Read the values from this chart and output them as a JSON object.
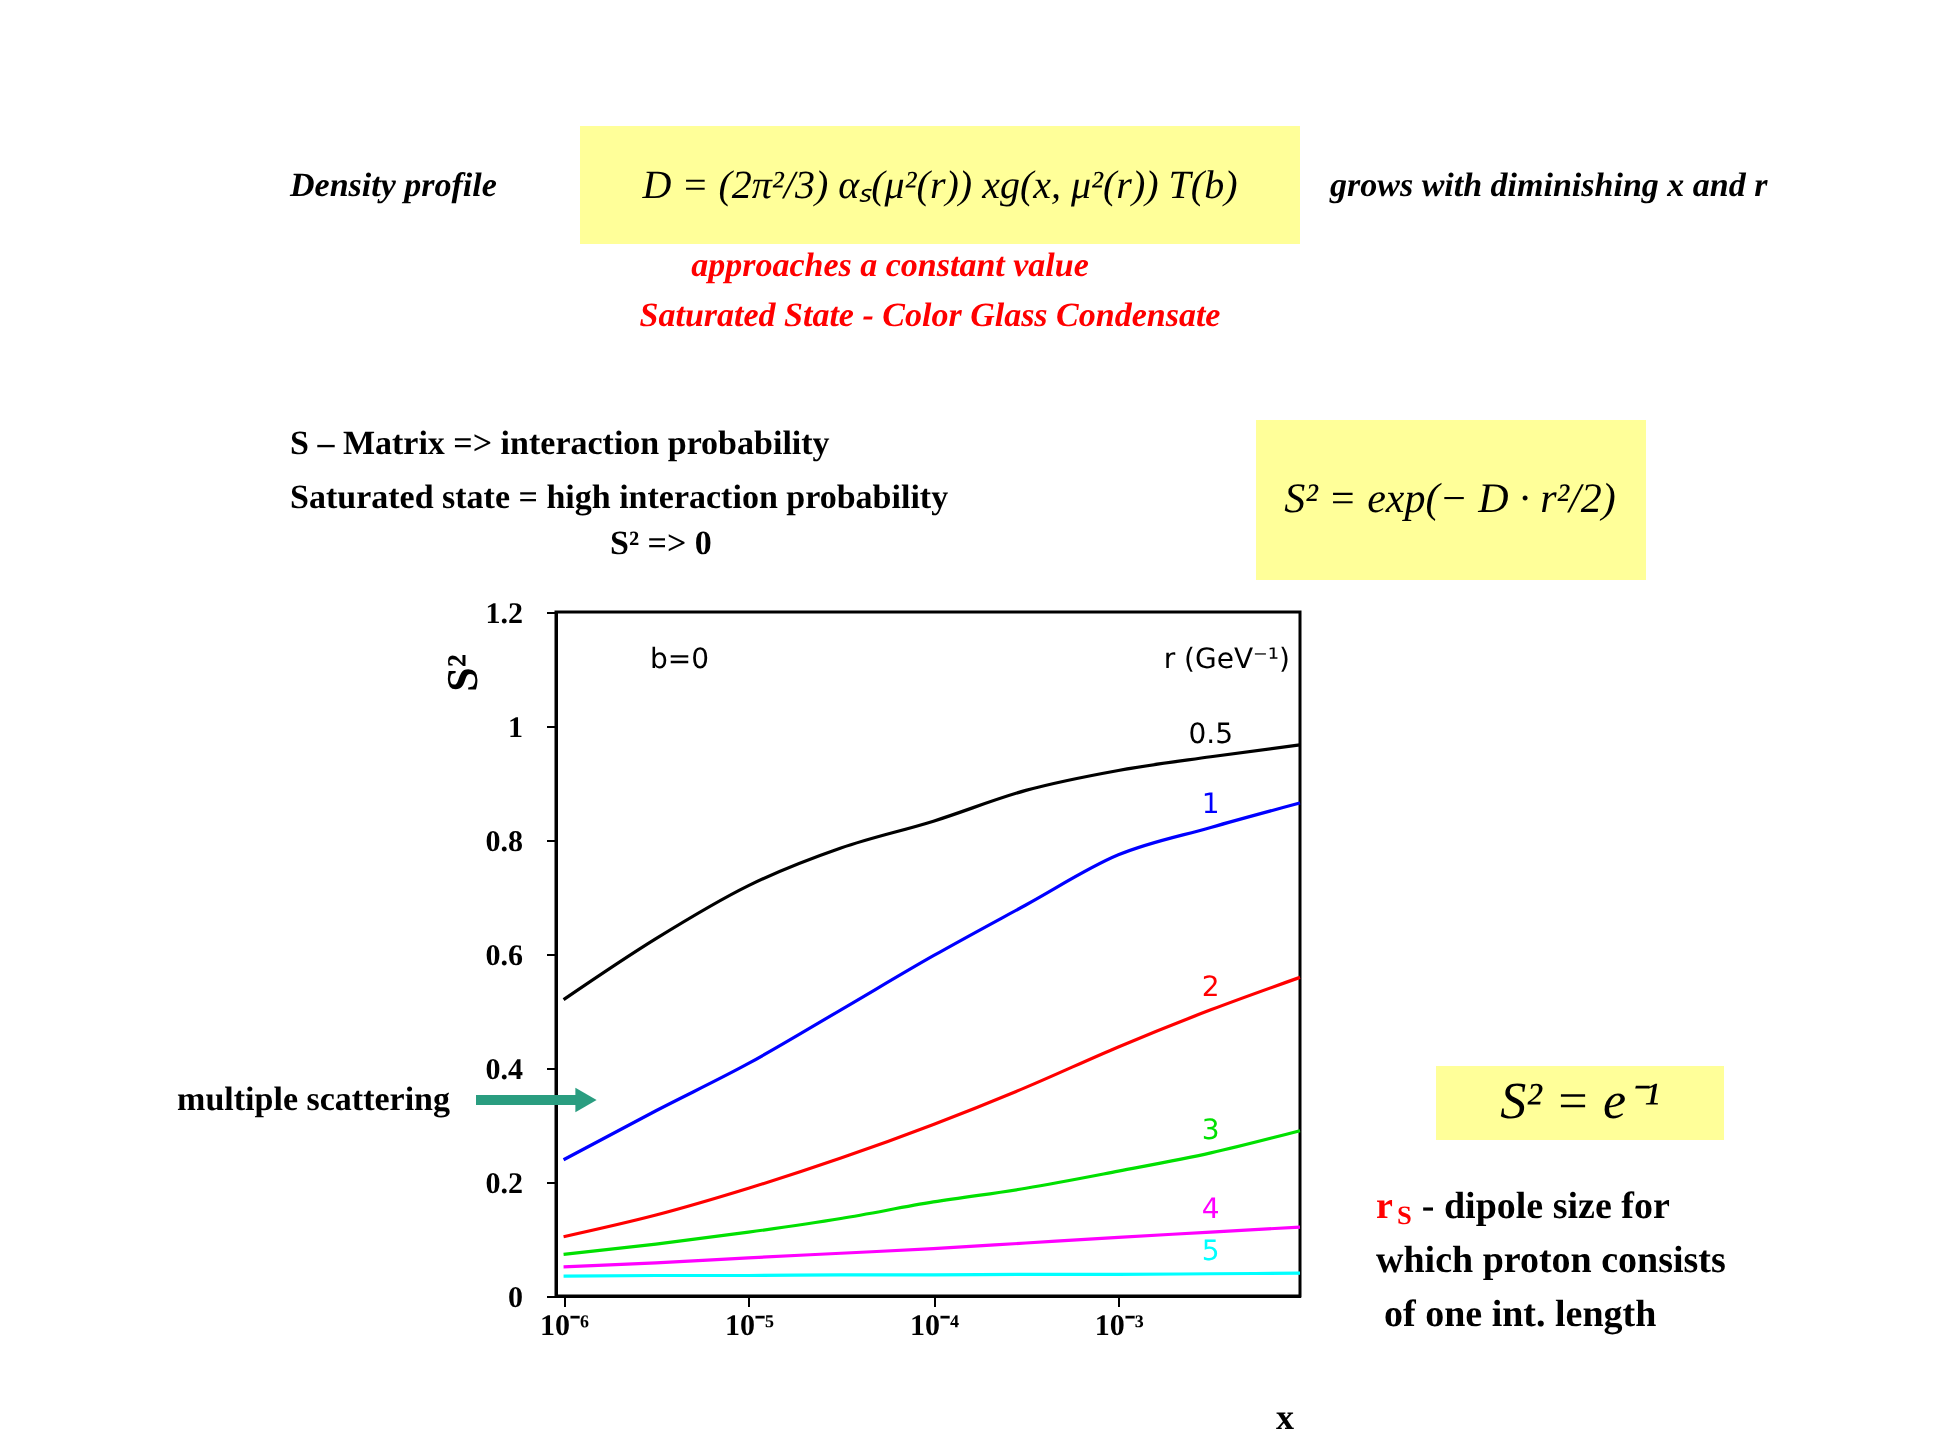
{
  "chart_data": {
    "type": "line",
    "x": [
      1e-06,
      3.16e-06,
      1e-05,
      3.16e-05,
      0.0001,
      0.000316,
      0.001,
      0.00316,
      0.0096
    ],
    "series": [
      {
        "name": "0.5",
        "color": "#000000",
        "values": [
          0.52,
          0.627,
          0.72,
          0.786,
          0.833,
          0.887,
          0.922,
          0.946,
          0.967
        ]
      },
      {
        "name": "1",
        "color": "#0000ff",
        "values": [
          0.239,
          0.325,
          0.408,
          0.502,
          0.597,
          0.686,
          0.774,
          0.822,
          0.865
        ]
      },
      {
        "name": "2",
        "color": "#ff0000",
        "values": [
          0.104,
          0.142,
          0.189,
          0.242,
          0.301,
          0.366,
          0.437,
          0.502,
          0.559
        ]
      },
      {
        "name": "3",
        "color": "#00e000",
        "values": [
          0.073,
          0.091,
          0.112,
          0.136,
          0.165,
          0.189,
          0.219,
          0.251,
          0.29
        ]
      },
      {
        "name": "4",
        "color": "#ff00ff",
        "values": [
          0.051,
          0.058,
          0.067,
          0.075,
          0.083,
          0.093,
          0.103,
          0.112,
          0.121
        ]
      },
      {
        "name": "5",
        "color": "#00ffff",
        "values": [
          0.035,
          0.036,
          0.036,
          0.037,
          0.037,
          0.038,
          0.038,
          0.039,
          0.04
        ]
      }
    ],
    "xlabel": "x",
    "ylabel": "S²",
    "legend_title": "r (GeV⁻¹)",
    "log": "x",
    "xlim": [
      9.1e-07,
      0.0096
    ],
    "ylim": [
      0,
      1.2
    ],
    "xticks": [
      {
        "value": 1e-06,
        "label": "10⁻⁶"
      },
      {
        "value": 1e-05,
        "label": "10⁻⁵"
      },
      {
        "value": 0.0001,
        "label": "10⁻⁴"
      },
      {
        "value": 0.001,
        "label": "10⁻³"
      }
    ],
    "yticks": [
      0,
      0.2,
      0.4,
      0.6,
      0.8,
      1,
      1.2
    ],
    "grid": false,
    "legend": false,
    "marker": "none",
    "line_style": "solid",
    "annotations": [
      "Density profile",
      "D = (2π²/3) αₛ(μ²(r)) xg(x, μ²(r)) T(b)",
      "grows with diminishing x and r",
      "approaches a constant value",
      "Saturated State      -    Color Glass Condensate",
      "S – Matrix  =>  interaction probability",
      "Saturated state = high interaction probability",
      "S² => 0",
      "S² = exp(− D · r²/2)",
      "b=0",
      "multiple scattering",
      "S² = e⁻¹",
      "r$_{S}$ -  dipole size for",
      "which proton consists",
      "of one int. length"
    ]
  }
}
